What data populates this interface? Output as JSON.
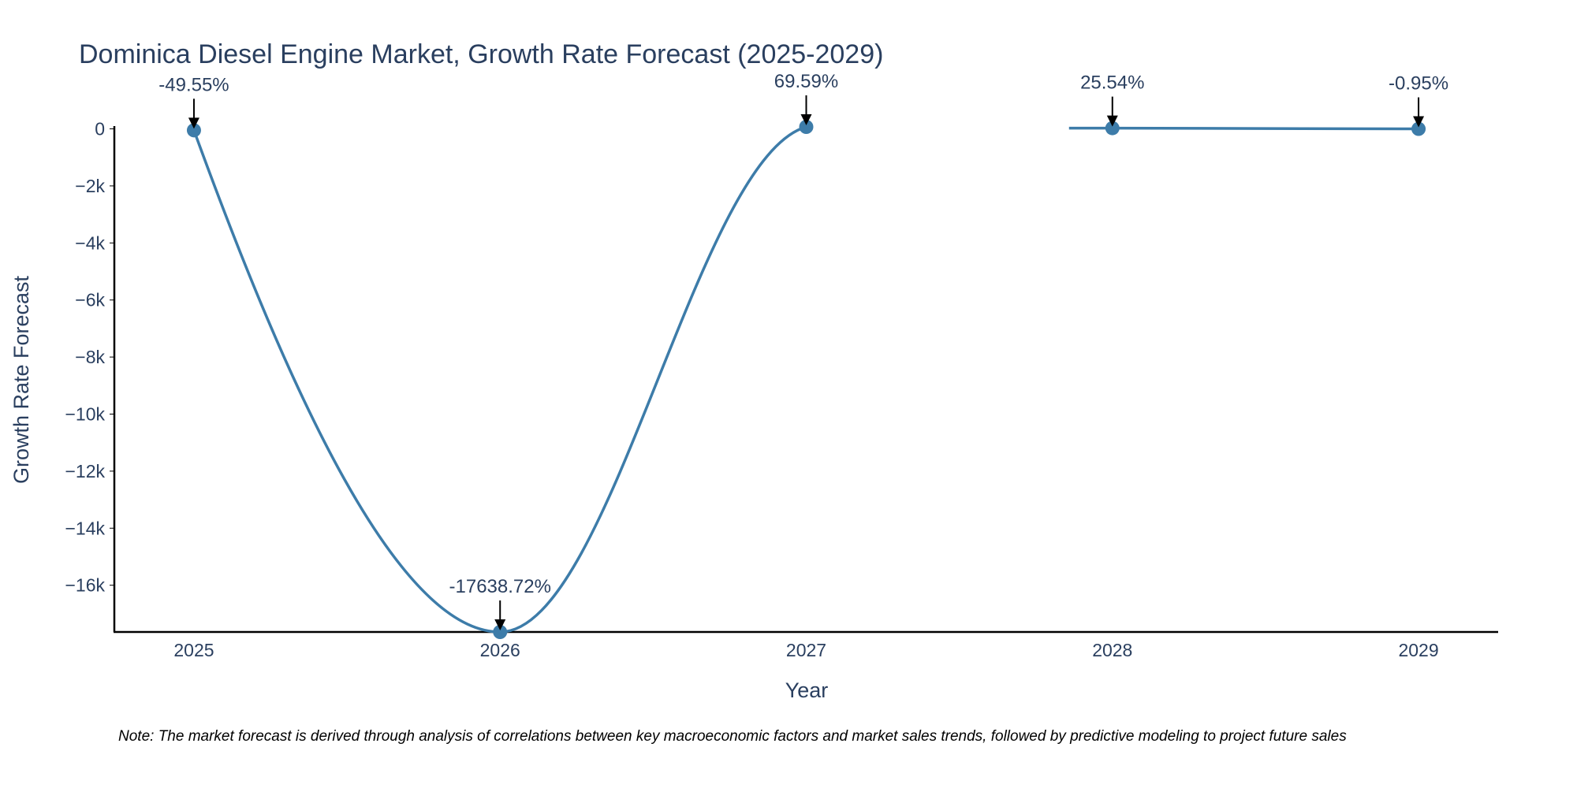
{
  "chart_data": {
    "type": "line",
    "title": "Dominica Diesel Engine Market, Growth Rate Forecast (2025-2029)",
    "xlabel": "Year",
    "ylabel": "Growth Rate Forecast",
    "categories": [
      "2025",
      "2026",
      "2027",
      "2028",
      "2029"
    ],
    "series": [
      {
        "name": "Growth Rate Forecast",
        "values": [
          -49.55,
          -17638.72,
          69.59,
          25.54,
          -0.95
        ]
      }
    ],
    "annotations": [
      "-49.55%",
      "-17638.72%",
      "69.59%",
      "25.54%",
      "-0.95%"
    ],
    "y_ticks": [
      0,
      -2000,
      -4000,
      -6000,
      -8000,
      -10000,
      -12000,
      -14000,
      -16000
    ],
    "y_tick_labels": [
      "0",
      "−2k",
      "−4k",
      "−6k",
      "−8k",
      "−10k",
      "−12k",
      "−14k",
      "−16k"
    ],
    "ylim": [
      -17638.72,
      69.59
    ],
    "xlim": [
      2024.74,
      2029.26
    ],
    "line_color": "#3d7ca9",
    "grid": false,
    "legend": "none"
  },
  "note": "Note: The market forecast is derived through analysis of correlations between key macroeconomic factors and market sales trends, followed by predictive modeling to project future sales"
}
